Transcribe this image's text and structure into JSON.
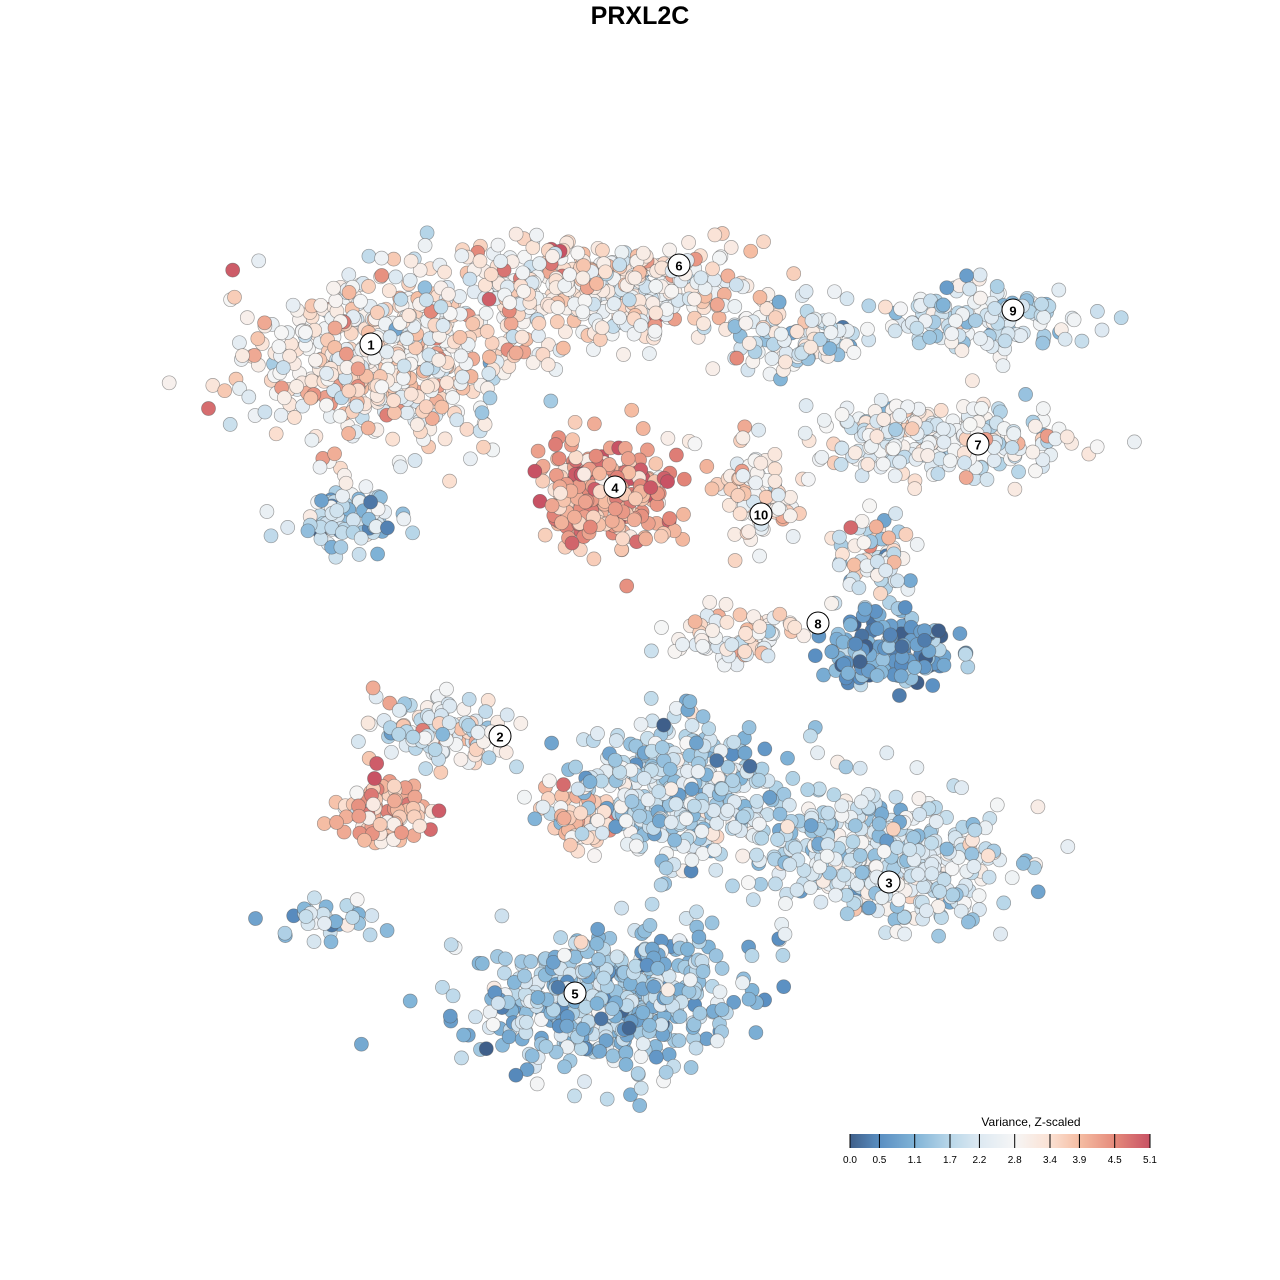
{
  "chart_data": {
    "type": "scatter",
    "title": "PRXL2C",
    "xlabel": "",
    "ylabel": "",
    "xlim": [
      -50,
      55
    ],
    "ylim": [
      -50,
      50
    ],
    "grid": false,
    "color_scale": {
      "title": "Variance, Z-scaled",
      "range": [
        0.0,
        5.1
      ],
      "ticks": [
        "0.0",
        "0.5",
        "1.1",
        "1.7",
        "2.2",
        "2.8",
        "3.4",
        "3.9",
        "4.5",
        "5.1"
      ],
      "tick_values": [
        0.0,
        0.5,
        1.1,
        1.7,
        2.2,
        2.8,
        3.4,
        3.9,
        4.5,
        5.1
      ],
      "colors": [
        "#3f5f8a",
        "#5a8fc2",
        "#80b3d7",
        "#b9d7e9",
        "#dde9f2",
        "#f6f6f6",
        "#fbe1d3",
        "#f5bda3",
        "#e58a7b",
        "#c85264"
      ],
      "legend_position": "bottom-right"
    },
    "clusters": [
      {
        "label": "1",
        "label_pos": [
          -26.9,
          29.6
        ],
        "blobs": [
          {
            "center": [
              -26,
              28
            ],
            "spread": [
              12,
              8
            ],
            "n": 520,
            "mean": 3.0,
            "sd": 0.7
          },
          {
            "center": [
              -29,
              12
            ],
            "spread": [
              5,
              3
            ],
            "n": 90,
            "mean": 1.7,
            "sd": 0.7
          }
        ]
      },
      {
        "label": "6",
        "label_pos": [
          3.9,
          37.5
        ],
        "blobs": [
          {
            "center": [
              -4,
              35
            ],
            "spread": [
              15,
              4.5
            ],
            "n": 420,
            "mean": 3.0,
            "sd": 0.7
          },
          {
            "center": [
              15,
              30
            ],
            "spread": [
              6,
              3
            ],
            "n": 90,
            "mean": 2.3,
            "sd": 0.8
          }
        ]
      },
      {
        "label": "4",
        "label_pos": [
          -2.5,
          15.3
        ],
        "blobs": [
          {
            "center": [
              -3.5,
              14.5
            ],
            "spread": [
              6,
              5
            ],
            "n": 260,
            "mean": 4.2,
            "sd": 0.6
          }
        ]
      },
      {
        "label": "10",
        "label_pos": [
          12.1,
          12.6
        ],
        "blobs": [
          {
            "center": [
              11.5,
              14.5
            ],
            "spread": [
              4,
              4
            ],
            "n": 90,
            "mean": 3.1,
            "sd": 0.6
          }
        ]
      },
      {
        "label": "9",
        "label_pos": [
          37.3,
          33.0
        ],
        "blobs": [
          {
            "center": [
              34,
              32
            ],
            "spread": [
              9,
              3
            ],
            "n": 140,
            "mean": 2.1,
            "sd": 0.6
          }
        ]
      },
      {
        "label": "7",
        "label_pos": [
          33.8,
          19.6
        ],
        "blobs": [
          {
            "center": [
              30,
              20
            ],
            "spread": [
              12,
              3.5
            ],
            "n": 220,
            "mean": 2.6,
            "sd": 0.6
          },
          {
            "center": [
              23,
              8
            ],
            "spread": [
              4,
              4
            ],
            "n": 70,
            "mean": 2.5,
            "sd": 0.9
          }
        ]
      },
      {
        "label": "8",
        "label_pos": [
          17.8,
          1.7
        ],
        "blobs": [
          {
            "center": [
              25,
              -1
            ],
            "spread": [
              6,
              3
            ],
            "n": 150,
            "mean": 0.8,
            "sd": 0.6
          },
          {
            "center": [
              10,
              0
            ],
            "spread": [
              6,
              2.5
            ],
            "n": 70,
            "mean": 3.0,
            "sd": 0.8
          }
        ]
      },
      {
        "label": "2",
        "label_pos": [
          -14.0,
          -9.6
        ],
        "blobs": [
          {
            "center": [
              -20,
              -9
            ],
            "spread": [
              6,
              3
            ],
            "n": 120,
            "mean": 2.7,
            "sd": 0.8
          },
          {
            "center": [
              -26,
              -17
            ],
            "spread": [
              4,
              3
            ],
            "n": 90,
            "mean": 3.8,
            "sd": 0.6
          },
          {
            "center": [
              -31,
              -28
            ],
            "spread": [
              5,
              2
            ],
            "n": 35,
            "mean": 1.6,
            "sd": 0.6
          }
        ]
      },
      {
        "label": "3",
        "label_pos": [
          24.9,
          -24.2
        ],
        "blobs": [
          {
            "center": [
              24,
              -22
            ],
            "spread": [
              11,
              6
            ],
            "n": 420,
            "mean": 2.1,
            "sd": 0.6
          },
          {
            "center": [
              5,
              -15
            ],
            "spread": [
              10,
              6
            ],
            "n": 420,
            "mean": 1.8,
            "sd": 0.6
          },
          {
            "center": [
              -6,
              -18
            ],
            "spread": [
              3,
              3
            ],
            "n": 60,
            "mean": 3.6,
            "sd": 0.6
          }
        ]
      },
      {
        "label": "5",
        "label_pos": [
          -6.5,
          -35.3
        ],
        "blobs": [
          {
            "center": [
              -3,
              -36
            ],
            "spread": [
              12,
              6
            ],
            "n": 520,
            "mean": 1.5,
            "sd": 0.6
          }
        ]
      }
    ]
  }
}
